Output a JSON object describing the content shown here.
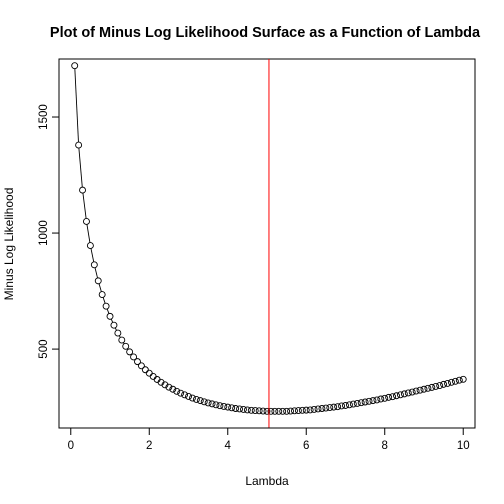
{
  "chart_data": {
    "type": "scatter",
    "title": "Plot of Minus Log Likelihood Surface as a Function of Lambda",
    "xlabel": "Lambda",
    "ylabel": "Minus Log Likelihood",
    "xlim": [
      -0.3,
      10.3
    ],
    "ylim": [
      160,
      1750
    ],
    "xticks": [
      "0",
      "2",
      "4",
      "6",
      "8",
      "10"
    ],
    "yticks": [
      "500",
      "1000",
      "1500"
    ],
    "grid": false,
    "legend": "none",
    "points_connected": true,
    "reference_line": {
      "orientation": "vertical",
      "x": 5.05,
      "color": "#ff0000"
    },
    "series": [
      {
        "x": [
          0.1,
          0.2,
          0.3,
          0.4,
          0.5,
          0.6,
          0.7,
          0.8,
          0.9,
          1.0,
          1.1,
          1.2,
          1.3,
          1.4,
          1.5,
          1.6,
          1.7,
          1.8,
          1.9,
          2.0,
          2.1,
          2.2,
          2.3,
          2.4,
          2.5,
          2.6,
          2.7,
          2.8,
          2.9,
          3.0,
          3.1,
          3.2,
          3.3,
          3.4,
          3.5,
          3.6,
          3.7,
          3.8,
          3.9,
          4.0,
          4.1,
          4.2,
          4.3,
          4.4,
          4.5,
          4.6,
          4.7,
          4.8,
          4.9,
          5.0,
          5.1,
          5.2,
          5.3,
          5.4,
          5.5,
          5.6,
          5.7,
          5.8,
          5.9,
          6.0,
          6.1,
          6.2,
          6.3,
          6.4,
          6.5,
          6.6,
          6.7,
          6.8,
          6.9,
          7.0,
          7.1,
          7.2,
          7.3,
          7.4,
          7.5,
          7.6,
          7.7,
          7.8,
          7.9,
          8.0,
          8.1,
          8.2,
          8.3,
          8.4,
          8.5,
          8.6,
          8.7,
          8.8,
          8.9,
          9.0,
          9.1,
          9.2,
          9.3,
          9.4,
          9.5,
          9.6,
          9.7,
          9.8,
          9.9,
          10.0
        ],
        "y": [
          1721,
          1379,
          1185,
          1050,
          946,
          863,
          794,
          735,
          685,
          641,
          603,
          569,
          539,
          512,
          488,
          466,
          446,
          428,
          411,
          396,
          382,
          369,
          357,
          346,
          336,
          327,
          318,
          310,
          303,
          296,
          289,
          283,
          278,
          273,
          268,
          264,
          260,
          256,
          253,
          250,
          247,
          244,
          242,
          240,
          238,
          236,
          235,
          234,
          233,
          232,
          232,
          232,
          232,
          232,
          232,
          233,
          234,
          235,
          236,
          237,
          238,
          240,
          242,
          244,
          246,
          248,
          250,
          252,
          255,
          257,
          260,
          263,
          266,
          269,
          272,
          275,
          278,
          281,
          285,
          288,
          292,
          295,
          299,
          303,
          307,
          311,
          315,
          319,
          323,
          327,
          331,
          335,
          339,
          343,
          348,
          352,
          357,
          361,
          366,
          370
        ]
      }
    ]
  }
}
